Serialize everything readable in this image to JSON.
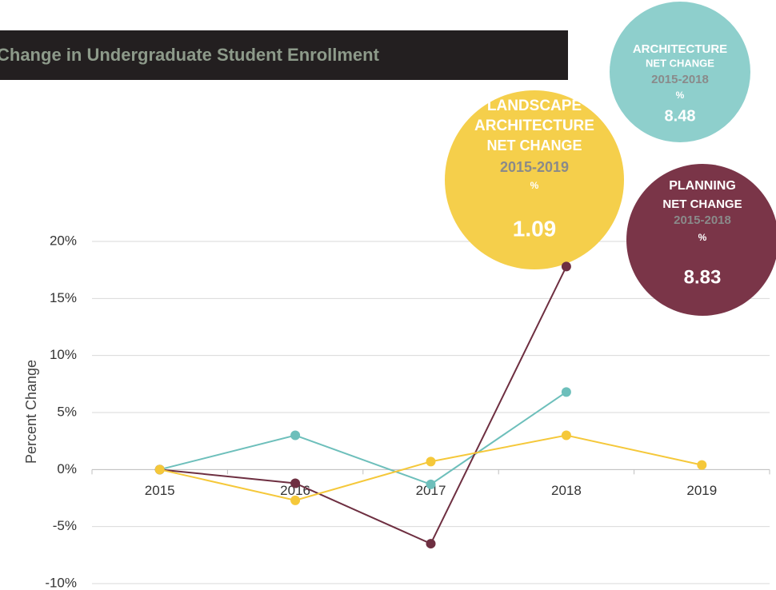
{
  "chart_data": {
    "type": "line",
    "title": "Change in Undergraduate Student Enrollment",
    "ylabel": "Percent Change",
    "categories": [
      "2015",
      "2016",
      "2017",
      "2018",
      "2019"
    ],
    "series": [
      {
        "color": "#6dbfbb",
        "values": [
          0,
          3.0,
          -1.3,
          6.8,
          null
        ]
      },
      {
        "color": "#6e2f41",
        "values": [
          0,
          -1.2,
          -6.5,
          17.8,
          null
        ]
      },
      {
        "color": "#f5c83a",
        "values": [
          0,
          -2.7,
          0.7,
          3.0,
          0.4
        ]
      }
    ],
    "ylim": [
      -10,
      20
    ],
    "yticks": [
      {
        "value": -10,
        "label": "-10%"
      },
      {
        "value": -5,
        "label": "-5%"
      },
      {
        "value": 0,
        "label": "0%"
      },
      {
        "value": 5,
        "label": "5%"
      },
      {
        "value": 10,
        "label": "10%"
      },
      {
        "value": 15,
        "label": "15%"
      },
      {
        "value": 20,
        "label": "20%"
      }
    ],
    "grid": true,
    "annotations": [
      {
        "color": "#8ecfcc",
        "title_lines": [
          "ARCHITECTURE"
        ],
        "label": "NET CHANGE",
        "period": "2015-2018",
        "unit": "%",
        "value": "8.48"
      },
      {
        "color": "#f5cf4b",
        "title_lines": [
          "LANDSCAPE",
          "ARCHITECTURE"
        ],
        "label": "NET CHANGE",
        "period": "2015-2019",
        "unit": "%",
        "value": "1.09"
      },
      {
        "color": "#7a3548",
        "title_lines": [
          "PLANNING"
        ],
        "label": "NET CHANGE",
        "period": "2015-2018",
        "unit": "%",
        "value": "8.83"
      }
    ]
  }
}
